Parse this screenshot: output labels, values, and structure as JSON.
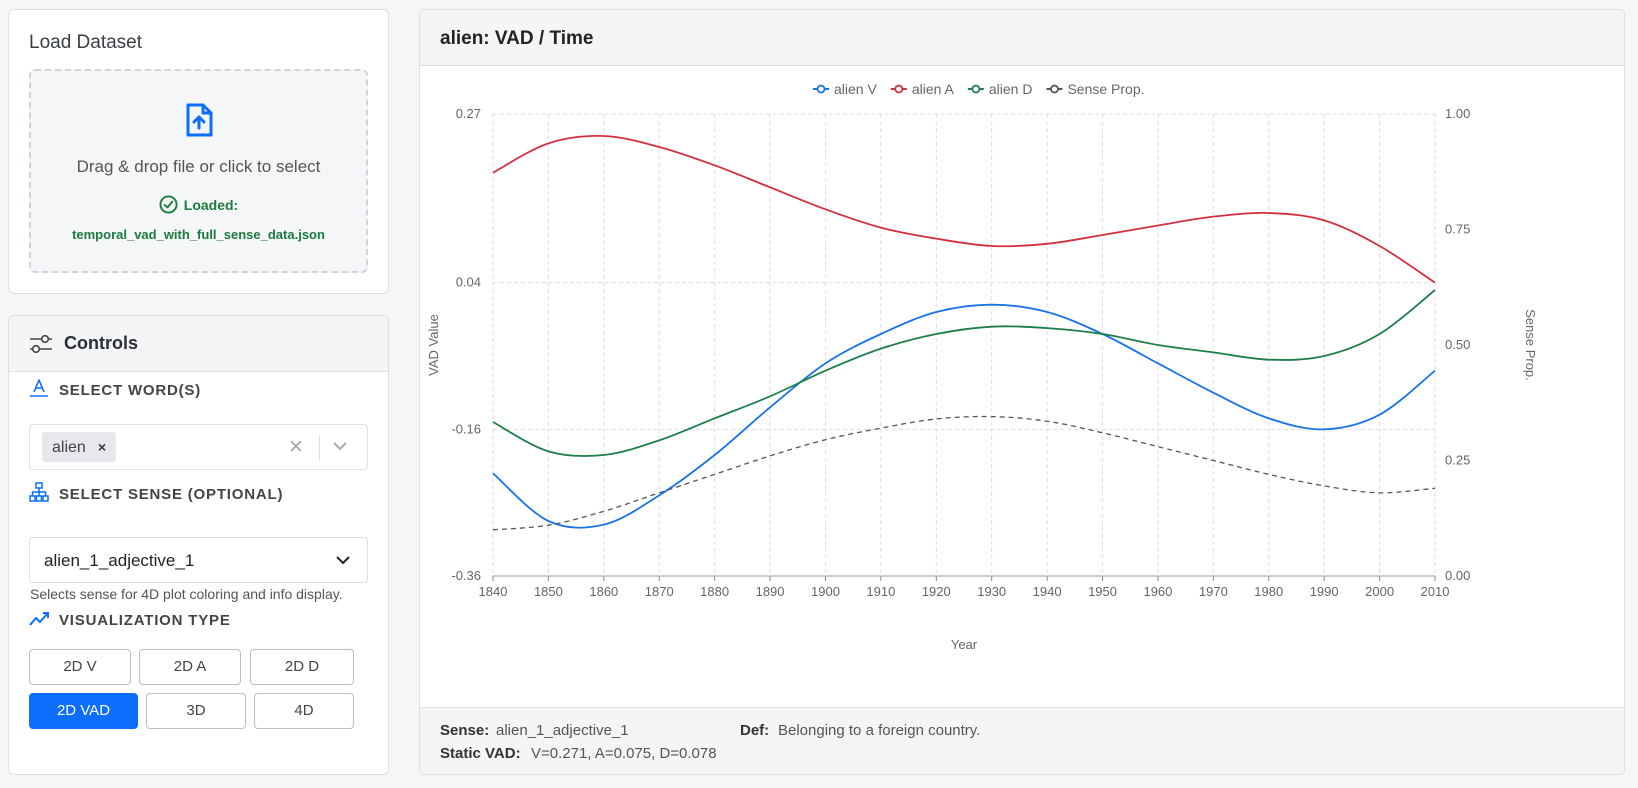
{
  "load": {
    "title": "Load Dataset",
    "drop_text": "Drag & drop file or click to select",
    "loaded_label": "Loaded:",
    "loaded_file": "temporal_vad_with_full_sense_data.json"
  },
  "controls": {
    "title": "Controls",
    "word_label": "SELECT WORD(S)",
    "selected_word": "alien",
    "sense_label": "SELECT SENSE (OPTIONAL)",
    "selected_sense": "alien_1_adjective_1",
    "sense_help": "Selects sense for 4D plot coloring and info display.",
    "viz_label": "VISUALIZATION TYPE",
    "viz_buttons": [
      "2D V",
      "2D A",
      "2D D",
      "2D VAD",
      "3D",
      "4D"
    ],
    "viz_active": "2D VAD"
  },
  "chart": {
    "title": "alien: VAD / Time"
  },
  "footer": {
    "sense_label": "Sense:",
    "sense_value": "alien_1_adjective_1",
    "def_label": "Def:",
    "def_value": "Belonging to a foreign country.",
    "static_label": "Static VAD:",
    "static_value": "V=0.271, A=0.075, D=0.078"
  },
  "colors": {
    "v": "#1a73e8",
    "a": "#d32f3f",
    "d": "#1d7f4a",
    "sense": "#555555",
    "accent": "#0d6efd"
  },
  "chart_data": {
    "type": "line",
    "title": "alien: VAD / Time",
    "xlabel": "Year",
    "ylabel": "VAD Value",
    "y2label": "Sense Prop.",
    "x": [
      1840,
      1850,
      1860,
      1870,
      1880,
      1890,
      1900,
      1910,
      1920,
      1930,
      1940,
      1950,
      1960,
      1970,
      1980,
      1990,
      2000,
      2010
    ],
    "xlim": [
      1840,
      2010
    ],
    "ylim": [
      -0.36,
      0.27
    ],
    "yticks": [
      0.27,
      0.04,
      -0.16,
      -0.36
    ],
    "y2lim": [
      0,
      1
    ],
    "y2ticks": [
      1.0,
      0.75,
      0.5,
      0.25,
      0.0
    ],
    "legend_position": "top-center",
    "grid": true,
    "series": [
      {
        "name": "alien V",
        "axis": "left",
        "values": [
          -0.22,
          -0.285,
          -0.29,
          -0.25,
          -0.195,
          -0.13,
          -0.07,
          -0.03,
          -0.0,
          0.01,
          0.0,
          -0.03,
          -0.07,
          -0.11,
          -0.145,
          -0.16,
          -0.14,
          -0.08
        ]
      },
      {
        "name": "alien A",
        "axis": "left",
        "values": [
          0.19,
          0.23,
          0.24,
          0.225,
          0.2,
          0.17,
          0.14,
          0.115,
          0.1,
          0.09,
          0.093,
          0.105,
          0.118,
          0.13,
          0.135,
          0.125,
          0.09,
          0.04
        ]
      },
      {
        "name": "alien D",
        "axis": "left",
        "values": [
          -0.15,
          -0.19,
          -0.195,
          -0.175,
          -0.145,
          -0.115,
          -0.08,
          -0.05,
          -0.03,
          -0.02,
          -0.022,
          -0.03,
          -0.045,
          -0.055,
          -0.065,
          -0.06,
          -0.03,
          0.03
        ]
      },
      {
        "name": "Sense Prop.",
        "axis": "right",
        "dashed": true,
        "values": [
          0.1,
          0.11,
          0.14,
          0.18,
          0.22,
          0.26,
          0.295,
          0.32,
          0.34,
          0.345,
          0.335,
          0.31,
          0.28,
          0.25,
          0.22,
          0.195,
          0.18,
          0.19
        ]
      }
    ]
  }
}
